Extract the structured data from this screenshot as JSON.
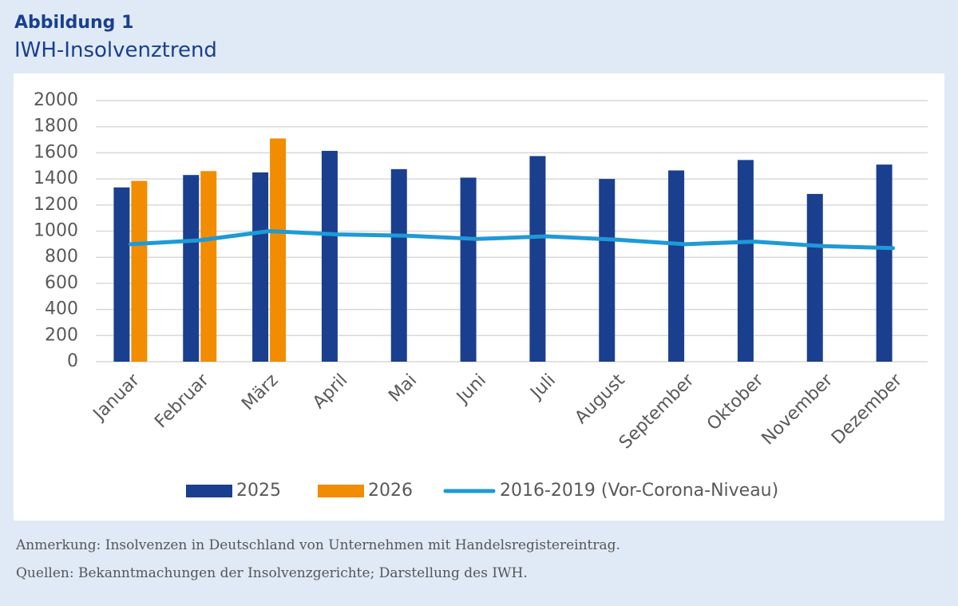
{
  "header": {
    "title": "Abbildung 1",
    "subtitle": "IWH-Insolvenztrend"
  },
  "chart_data": {
    "type": "bar",
    "categories": [
      "Januar",
      "Februar",
      "März",
      "April",
      "Mai",
      "Juni",
      "Juli",
      "August",
      "September",
      "Oktober",
      "November",
      "Dezember"
    ],
    "series": [
      {
        "name": "2025",
        "color": "#1a3f8f",
        "type": "bar",
        "values": [
          1335,
          1430,
          1450,
          1615,
          1475,
          1410,
          1575,
          1400,
          1465,
          1545,
          1285,
          1510
        ]
      },
      {
        "name": "2026",
        "color": "#f28c00",
        "type": "bar",
        "values": [
          1385,
          1460,
          1710,
          null,
          null,
          null,
          null,
          null,
          null,
          null,
          null,
          null
        ]
      },
      {
        "name": "2016-2019 (Vor-Corona-Niveau)",
        "color": "#1e9ad6",
        "type": "line",
        "values": [
          900,
          930,
          1000,
          975,
          965,
          940,
          960,
          935,
          900,
          920,
          885,
          870
        ]
      }
    ],
    "ylim": [
      0,
      2000
    ],
    "yticks": [
      0,
      200,
      400,
      600,
      800,
      1000,
      1200,
      1400,
      1600,
      1800,
      2000
    ],
    "grid": true,
    "legend": "bottom"
  },
  "notes": [
    "Anmerkung: Insolvenzen in Deutschland von Unternehmen mit Handelsregistereintrag.",
    "Quellen: Bekanntmachungen der Insolvenzgerichte; Darstellung des IWH."
  ]
}
